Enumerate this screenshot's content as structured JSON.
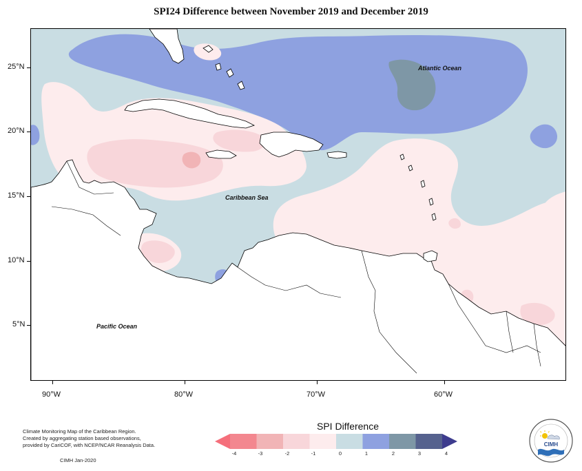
{
  "title": "SPI24 Difference between November 2019 and December 2019",
  "map": {
    "projection": "lat-lon",
    "lon_range": [
      -92,
      -52
    ],
    "lat_range": [
      1,
      28
    ],
    "x_ticks": [
      "90°W",
      "80°W",
      "70°W",
      "60°W"
    ],
    "y_ticks": [
      "25°N",
      "20°N",
      "15°N",
      "10°N",
      "5°N"
    ],
    "labels": {
      "atlantic": "Atlantic Ocean",
      "caribbean": "Caribbean Sea",
      "pacific": "Pacific Ocean"
    }
  },
  "legend": {
    "title": "SPI Difference",
    "ticks": [
      "-4",
      "-3",
      "-2",
      "-1",
      "0",
      "1",
      "2",
      "3",
      "4"
    ],
    "classes": [
      {
        "range": [
          -4,
          -3
        ],
        "color": "#f3878f"
      },
      {
        "range": [
          -3,
          -2
        ],
        "color": "#f1b4b6"
      },
      {
        "range": [
          -2,
          -1
        ],
        "color": "#f8d6da"
      },
      {
        "range": [
          -1,
          0
        ],
        "color": "#fdeced"
      },
      {
        "range": [
          0,
          1
        ],
        "color": "#c9dde3"
      },
      {
        "range": [
          1,
          2
        ],
        "color": "#8ea1e0"
      },
      {
        "range": [
          2,
          3
        ],
        "color": "#7e97a6"
      },
      {
        "range": [
          3,
          4
        ],
        "color": "#56628e"
      }
    ],
    "low_arrow_color": "#f56f7b",
    "high_arrow_color": "#3d3c8e"
  },
  "footnote": {
    "lines": [
      "Climate Monitoring Map of the Caribbean Region.",
      "Created by aggregating station based observations,",
      "provided by CariCOF, with NCEP/NCAR Reanalysis Data."
    ],
    "credit": "CIMH  Jan-2020"
  },
  "logo": {
    "text": "CIMH"
  }
}
